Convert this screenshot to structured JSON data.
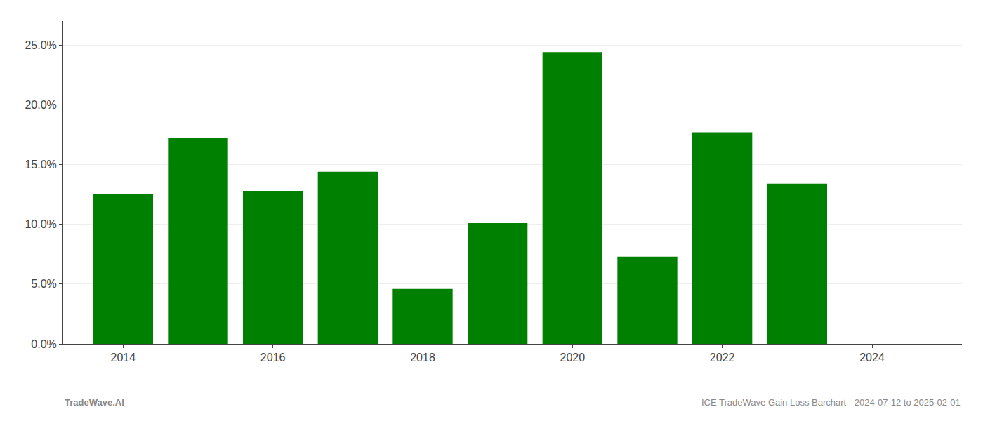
{
  "chart_data": {
    "type": "bar",
    "x": [
      2014,
      2015,
      2016,
      2017,
      2018,
      2019,
      2020,
      2021,
      2022,
      2023
    ],
    "values": [
      0.125,
      0.172,
      0.128,
      0.144,
      0.046,
      0.101,
      0.244,
      0.073,
      0.177,
      0.134
    ],
    "color": "#008000",
    "xlim": [
      2013.2,
      2025.2
    ],
    "xticks": [
      2014,
      2016,
      2018,
      2020,
      2022,
      2024
    ],
    "ylim": [
      0,
      0.27
    ],
    "yticks": [
      {
        "value": 0.0,
        "label": "0.0%"
      },
      {
        "value": 0.05,
        "label": "5.0%"
      },
      {
        "value": 0.1,
        "label": "10.0%"
      },
      {
        "value": 0.15,
        "label": "15.0%"
      },
      {
        "value": 0.2,
        "label": "20.0%"
      },
      {
        "value": 0.25,
        "label": "25.0%"
      }
    ],
    "grid": true,
    "annotations": [
      "TradeWave.AI",
      "ICE TradeWave Gain Loss Barchart - 2024-07-12 to 2025-02-01"
    ]
  }
}
